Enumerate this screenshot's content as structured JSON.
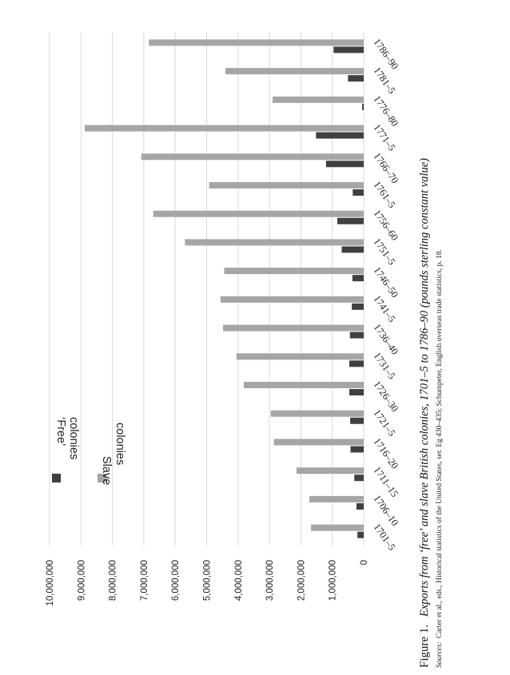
{
  "chart_data": {
    "type": "bar",
    "orientation": "rotated 90 degrees (page in landscape)",
    "categories": [
      "1701–5",
      "1706–10",
      "1711–15",
      "1716–20",
      "1721–5",
      "1726–30",
      "1731–5",
      "1736–40",
      "1741–5",
      "1746–50",
      "1751–5",
      "1756–60",
      "1761–5",
      "1766–70",
      "1771–5",
      "1776–80",
      "1781–5",
      "1786–90"
    ],
    "series": [
      {
        "name": "‘Free’ colonies",
        "color": "#404040",
        "values": [
          200000,
          230000,
          300000,
          420000,
          430000,
          460000,
          460000,
          440000,
          380000,
          360000,
          700000,
          840000,
          350000,
          1200000,
          1520000,
          50000,
          500000,
          960000
        ]
      },
      {
        "name": "Slave colonies",
        "color": "#a6a6a6",
        "values": [
          1680000,
          1730000,
          2140000,
          2860000,
          2960000,
          3820000,
          4050000,
          4480000,
          4560000,
          4440000,
          5690000,
          6700000,
          4920000,
          7080000,
          8880000,
          2900000,
          4400000,
          6840000
        ]
      }
    ],
    "ylim": [
      0,
      10000000
    ],
    "yticks": [
      "0",
      "1,000,000",
      "2,000,000",
      "3,000,000",
      "4,000,000",
      "5,000,000",
      "6,000,000",
      "7,000,000",
      "8,000,000",
      "9,000,000",
      "10,000,000"
    ],
    "grid": true,
    "legend": "inside, upper-left of rotated plot",
    "title": "Figure 1.",
    "caption": "Exports from ‘free’ and slave British colonies, 1701–5 to 1786–90 (pounds sterling constant value)",
    "source_label": "Sources:",
    "source_text": "Carter et al., eds., Historical statistics of the United States, ser. Eg 430–435; Schumpeter, English overseas trade statistics, p. 18."
  },
  "legend": {
    "free": [
      "‘Free’",
      "colonies"
    ],
    "slave": [
      "Slave",
      "colonies"
    ]
  }
}
